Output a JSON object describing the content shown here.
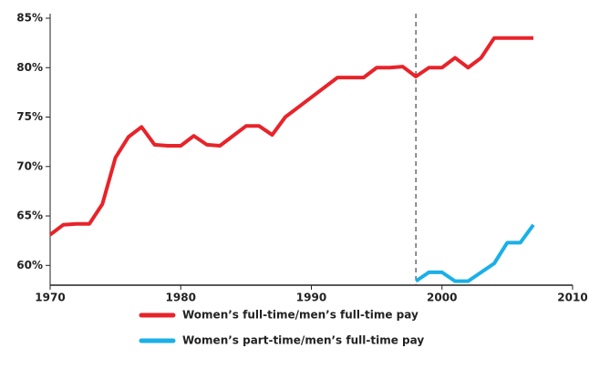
{
  "chart_data": {
    "type": "line",
    "series": [
      {
        "name": "Women’s full-time/men’s full-time pay",
        "color": "#e8232a",
        "x": [
          1970,
          1971,
          1972,
          1973,
          1974,
          1975,
          1976,
          1977,
          1978,
          1979,
          1980,
          1981,
          1982,
          1983,
          1984,
          1985,
          1986,
          1987,
          1988,
          1989,
          1990,
          1991,
          1992,
          1993,
          1994,
          1995,
          1996,
          1997,
          1998,
          1999,
          2000,
          2001,
          2002,
          2003,
          2004,
          2005,
          2006,
          2007
        ],
        "values": [
          63.1,
          64.1,
          64.2,
          64.2,
          66.2,
          70.9,
          73.0,
          74.0,
          72.2,
          72.1,
          72.1,
          73.1,
          72.2,
          72.1,
          73.1,
          74.1,
          74.1,
          73.2,
          75.0,
          76.0,
          77.0,
          78.0,
          79.0,
          79.0,
          79.0,
          80.0,
          80.0,
          80.1,
          79.1,
          80.0,
          80.0,
          81.0,
          80.0,
          81.0,
          83.0,
          83.0,
          83.0,
          83.0
        ]
      },
      {
        "name": "Women’s part-time/men’s full-time pay",
        "color": "#1ab0e8",
        "x": [
          1998,
          1999,
          2000,
          2001,
          2002,
          2003,
          2004,
          2005,
          2006,
          2007
        ],
        "values": [
          58.4,
          59.3,
          59.3,
          58.4,
          58.4,
          59.3,
          60.2,
          62.3,
          62.3,
          64.1
        ]
      }
    ],
    "xlim": [
      1970,
      2010
    ],
    "xticks": [
      1970,
      1980,
      1990,
      2000,
      2010
    ],
    "ylim": [
      58,
      85
    ],
    "yticks": [
      {
        "value": 60,
        "label": "60%"
      },
      {
        "value": 65,
        "label": "65%"
      },
      {
        "value": 70,
        "label": "70%"
      },
      {
        "value": 75,
        "label": "75%"
      },
      {
        "value": 80,
        "label": "80%"
      },
      {
        "value": 85,
        "label": "85%"
      }
    ],
    "reference_x": 1998
  }
}
